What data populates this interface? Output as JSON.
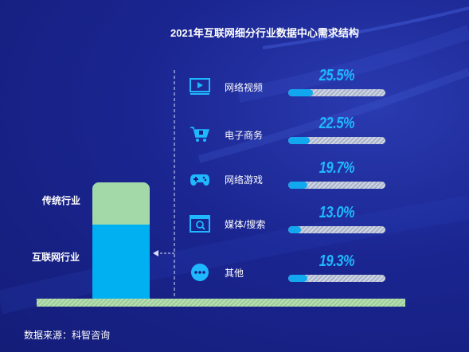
{
  "title": "2021年互联网细分行业数据中心需求结构",
  "source": "数据来源：科智咨询",
  "colors": {
    "background": "#1a2590",
    "accent": "#12a8f0",
    "traditional": "#a3d9a8",
    "internet": "#00b0f0",
    "value_text": "#1fb8ff"
  },
  "chart_data": [
    {
      "type": "bar",
      "categories": [
        "传统行业",
        "互联网行业"
      ],
      "stacked": true,
      "note_visible_only": "segments without printed values",
      "series": [
        {
          "name": "互联网行业",
          "color": "#00b0f0"
        },
        {
          "name": "传统行业",
          "color": "#a3d9a8"
        }
      ]
    },
    {
      "type": "bar",
      "title": "2021年互联网细分行业数据中心需求结构",
      "categories": [
        "网络视频",
        "电子商务",
        "网络游戏",
        "媒体/搜索",
        "其他"
      ],
      "values": [
        25.5,
        22.5,
        19.7,
        13.0,
        19.3
      ],
      "value_labels": [
        "25.5%",
        "22.5%",
        "19.7%",
        "13.0%",
        "19.3%"
      ],
      "icons": [
        "video-icon",
        "shopping-cart-icon",
        "gamepad-icon",
        "browser-search-icon",
        "more-icon"
      ],
      "xlim": [
        0,
        100
      ]
    }
  ]
}
